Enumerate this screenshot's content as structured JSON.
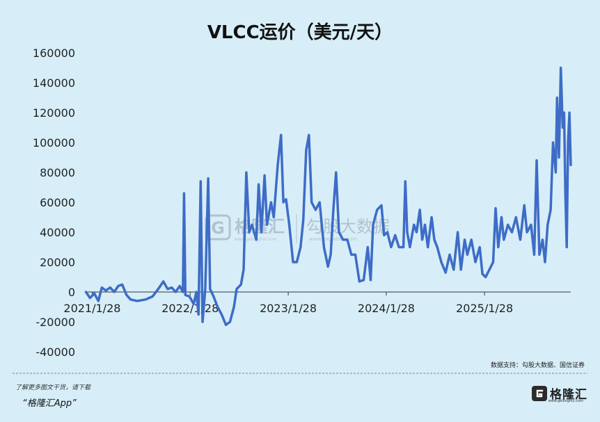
{
  "chart_data": {
    "type": "line",
    "title": "VLCC运价（美元/天）",
    "xlabel": "",
    "ylabel": "",
    "x_ticks": [
      "2021/1/28",
      "2022/1/28",
      "2023/1/28",
      "2024/1/28",
      "2025/1/28"
    ],
    "x_range": [
      "2021-01-01",
      "2025-12-15"
    ],
    "y_ticks": [
      -40000,
      -20000,
      0,
      20000,
      40000,
      60000,
      80000,
      100000,
      120000,
      140000,
      160000
    ],
    "ylim": [
      -40000,
      160000
    ],
    "grid": false,
    "legend": "none",
    "line_color": "#3e6cc6",
    "series": [
      {
        "values": [
          [
            "2021-01-05",
            0
          ],
          [
            "2021-01-20",
            -4000
          ],
          [
            "2021-02-05",
            -1000
          ],
          [
            "2021-02-20",
            -6000
          ],
          [
            "2021-03-05",
            3000
          ],
          [
            "2021-03-20",
            1000
          ],
          [
            "2021-04-05",
            3000
          ],
          [
            "2021-04-20",
            0
          ],
          [
            "2021-05-05",
            4000
          ],
          [
            "2021-05-20",
            5000
          ],
          [
            "2021-06-05",
            -2000
          ],
          [
            "2021-06-20",
            -5000
          ],
          [
            "2021-07-15",
            -6000
          ],
          [
            "2021-08-15",
            -5000
          ],
          [
            "2021-09-10",
            -3000
          ],
          [
            "2021-10-01",
            2000
          ],
          [
            "2021-10-20",
            7000
          ],
          [
            "2021-11-05",
            2000
          ],
          [
            "2021-11-20",
            3000
          ],
          [
            "2021-12-05",
            0
          ],
          [
            "2021-12-20",
            4000
          ],
          [
            "2022-01-01",
            0
          ],
          [
            "2022-01-05",
            66000
          ],
          [
            "2022-01-10",
            -2000
          ],
          [
            "2022-01-25",
            -3000
          ],
          [
            "2022-02-10",
            -8000
          ],
          [
            "2022-02-20",
            0
          ],
          [
            "2022-02-28",
            -15000
          ],
          [
            "2022-03-08",
            74000
          ],
          [
            "2022-03-15",
            -20000
          ],
          [
            "2022-03-25",
            2000
          ],
          [
            "2022-04-05",
            76000
          ],
          [
            "2022-04-12",
            2000
          ],
          [
            "2022-04-25",
            -3000
          ],
          [
            "2022-05-10",
            -10000
          ],
          [
            "2022-05-25",
            -15000
          ],
          [
            "2022-06-10",
            -22000
          ],
          [
            "2022-06-25",
            -20000
          ],
          [
            "2022-07-10",
            -10000
          ],
          [
            "2022-07-20",
            2000
          ],
          [
            "2022-08-05",
            5000
          ],
          [
            "2022-08-15",
            15000
          ],
          [
            "2022-08-25",
            80000
          ],
          [
            "2022-09-05",
            40000
          ],
          [
            "2022-09-15",
            45000
          ],
          [
            "2022-10-01",
            35000
          ],
          [
            "2022-10-10",
            72000
          ],
          [
            "2022-10-20",
            40000
          ],
          [
            "2022-11-01",
            78000
          ],
          [
            "2022-11-10",
            45000
          ],
          [
            "2022-11-25",
            60000
          ],
          [
            "2022-12-05",
            50000
          ],
          [
            "2022-12-20",
            85000
          ],
          [
            "2023-01-01",
            105000
          ],
          [
            "2023-01-10",
            60000
          ],
          [
            "2023-01-20",
            62000
          ],
          [
            "2023-02-01",
            45000
          ],
          [
            "2023-02-15",
            20000
          ],
          [
            "2023-03-01",
            20000
          ],
          [
            "2023-03-15",
            30000
          ],
          [
            "2023-03-25",
            48000
          ],
          [
            "2023-04-05",
            95000
          ],
          [
            "2023-04-15",
            105000
          ],
          [
            "2023-04-25",
            60000
          ],
          [
            "2023-05-10",
            55000
          ],
          [
            "2023-05-25",
            60000
          ],
          [
            "2023-06-10",
            30000
          ],
          [
            "2023-06-25",
            17000
          ],
          [
            "2023-07-05",
            25000
          ],
          [
            "2023-07-15",
            55000
          ],
          [
            "2023-07-25",
            80000
          ],
          [
            "2023-08-05",
            40000
          ],
          [
            "2023-08-20",
            35000
          ],
          [
            "2023-09-05",
            35000
          ],
          [
            "2023-09-20",
            25000
          ],
          [
            "2023-10-05",
            25000
          ],
          [
            "2023-10-20",
            7000
          ],
          [
            "2023-11-05",
            8000
          ],
          [
            "2023-11-20",
            30000
          ],
          [
            "2023-12-01",
            8000
          ],
          [
            "2023-12-10",
            45000
          ],
          [
            "2023-12-25",
            55000
          ],
          [
            "2024-01-10",
            58000
          ],
          [
            "2024-01-20",
            38000
          ],
          [
            "2024-02-01",
            40000
          ],
          [
            "2024-02-15",
            30000
          ],
          [
            "2024-03-01",
            38000
          ],
          [
            "2024-03-15",
            30000
          ],
          [
            "2024-04-01",
            30000
          ],
          [
            "2024-04-08",
            74000
          ],
          [
            "2024-04-15",
            40000
          ],
          [
            "2024-04-25",
            30000
          ],
          [
            "2024-05-10",
            45000
          ],
          [
            "2024-05-20",
            40000
          ],
          [
            "2024-06-01",
            55000
          ],
          [
            "2024-06-10",
            35000
          ],
          [
            "2024-06-20",
            45000
          ],
          [
            "2024-07-01",
            30000
          ],
          [
            "2024-07-15",
            50000
          ],
          [
            "2024-07-25",
            35000
          ],
          [
            "2024-08-05",
            30000
          ],
          [
            "2024-08-20",
            20000
          ],
          [
            "2024-09-05",
            13000
          ],
          [
            "2024-09-20",
            25000
          ],
          [
            "2024-10-05",
            15000
          ],
          [
            "2024-10-20",
            40000
          ],
          [
            "2024-11-01",
            15000
          ],
          [
            "2024-11-15",
            35000
          ],
          [
            "2024-11-25",
            25000
          ],
          [
            "2024-12-10",
            35000
          ],
          [
            "2024-12-25",
            20000
          ],
          [
            "2025-01-10",
            30000
          ],
          [
            "2025-01-20",
            12000
          ],
          [
            "2025-02-01",
            10000
          ],
          [
            "2025-02-15",
            15000
          ],
          [
            "2025-03-01",
            20000
          ],
          [
            "2025-03-10",
            56000
          ],
          [
            "2025-03-20",
            30000
          ],
          [
            "2025-04-01",
            50000
          ],
          [
            "2025-04-10",
            35000
          ],
          [
            "2025-04-25",
            45000
          ],
          [
            "2025-05-10",
            40000
          ],
          [
            "2025-05-25",
            50000
          ],
          [
            "2025-06-10",
            35000
          ],
          [
            "2025-06-25",
            58000
          ],
          [
            "2025-07-05",
            40000
          ],
          [
            "2025-07-20",
            45000
          ],
          [
            "2025-08-01",
            25000
          ],
          [
            "2025-08-10",
            88000
          ],
          [
            "2025-08-20",
            25000
          ],
          [
            "2025-09-01",
            35000
          ],
          [
            "2025-09-10",
            20000
          ],
          [
            "2025-09-20",
            45000
          ],
          [
            "2025-10-01",
            55000
          ],
          [
            "2025-10-10",
            100000
          ],
          [
            "2025-10-20",
            80000
          ],
          [
            "2025-10-25",
            130000
          ],
          [
            "2025-11-01",
            90000
          ],
          [
            "2025-11-08",
            150000
          ],
          [
            "2025-11-15",
            110000
          ],
          [
            "2025-11-20",
            120000
          ],
          [
            "2025-11-25",
            65000
          ],
          [
            "2025-11-30",
            30000
          ],
          [
            "2025-12-05",
            100000
          ],
          [
            "2025-12-10",
            120000
          ],
          [
            "2025-12-15",
            85000
          ]
        ]
      }
    ]
  },
  "watermark": {
    "brand": "格隆汇",
    "brand_domain": "www.gelonghui.com",
    "product": "勾股大数据",
    "product_domain": "www.gogudata.com"
  },
  "source_note": "数据支持：勾股大数据、国信证券",
  "footer": {
    "line1": "了解更多图文干货，请下载",
    "line2": "“格隆汇App”",
    "brand_name": "格隆汇",
    "brand_domain": "www.gelonghui.com"
  }
}
